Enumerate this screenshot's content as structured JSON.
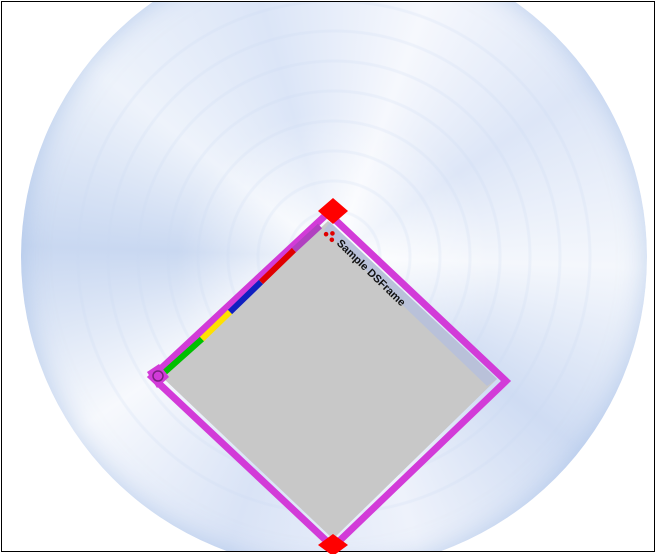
{
  "window": {
    "title": "Sample DSFrame",
    "content_color": "#c8c8c8",
    "border_color": "#d23bd8",
    "corner_handle_color": "#ff0000",
    "titlebar_pattern_color": "#b6bfdc",
    "color_strip": [
      "#00c000",
      "#ffe000",
      "#1020c0",
      "#e00000",
      "#b040c0"
    ]
  },
  "icons": {
    "app_icon": "tri-dot-icon",
    "resize_handle": "corner-resize-icon"
  }
}
